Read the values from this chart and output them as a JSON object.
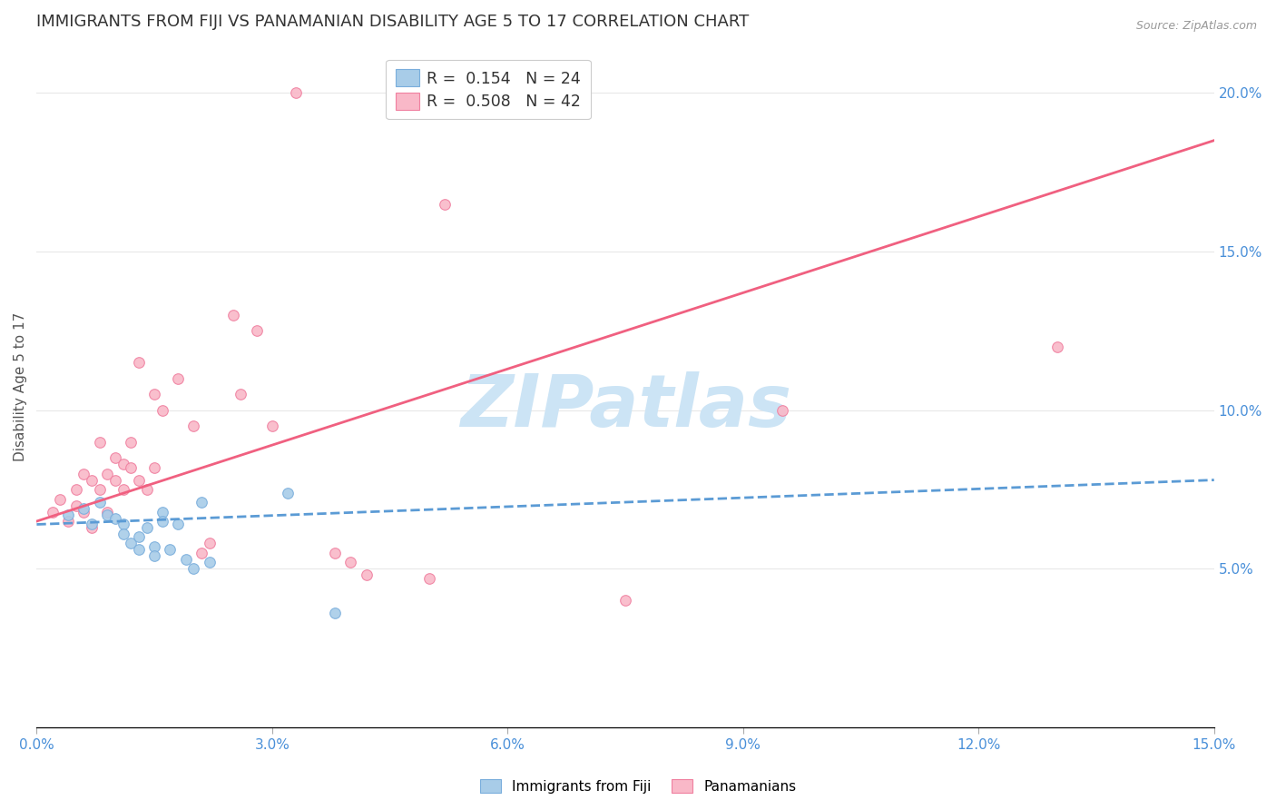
{
  "title": "IMMIGRANTS FROM FIJI VS PANAMANIAN DISABILITY AGE 5 TO 17 CORRELATION CHART",
  "source": "Source: ZipAtlas.com",
  "ylabel": "Disability Age 5 to 17",
  "xlim": [
    0.0,
    0.15
  ],
  "ylim": [
    0.0,
    0.215
  ],
  "xticks": [
    0.0,
    0.03,
    0.06,
    0.09,
    0.12,
    0.15
  ],
  "yticks_right": [
    0.05,
    0.1,
    0.15,
    0.2
  ],
  "fiji_color": "#a8cce8",
  "panama_color": "#f9b8c8",
  "fiji_edge_color": "#7aaedc",
  "panama_edge_color": "#f080a0",
  "fiji_line_color": "#5b9bd5",
  "panama_line_color": "#f06080",
  "fiji_line_style": "--",
  "panama_line_style": "-",
  "legend_label_fiji": "R =  0.154   N = 24",
  "legend_label_panama": "R =  0.508   N = 42",
  "bottom_legend_fiji": "Immigrants from Fiji",
  "bottom_legend_panama": "Panamanians",
  "background_color": "#ffffff",
  "grid_color": "#e8e8e8",
  "watermark_text": "ZIPatlas",
  "watermark_color": "#cce4f5",
  "title_fontsize": 13,
  "axis_label_fontsize": 11,
  "tick_fontsize": 11,
  "scatter_size": 70,
  "fiji_scatter": [
    [
      0.004,
      0.067
    ],
    [
      0.006,
      0.069
    ],
    [
      0.007,
      0.064
    ],
    [
      0.008,
      0.071
    ],
    [
      0.009,
      0.067
    ],
    [
      0.01,
      0.066
    ],
    [
      0.011,
      0.064
    ],
    [
      0.011,
      0.061
    ],
    [
      0.012,
      0.058
    ],
    [
      0.013,
      0.06
    ],
    [
      0.013,
      0.056
    ],
    [
      0.014,
      0.063
    ],
    [
      0.015,
      0.057
    ],
    [
      0.015,
      0.054
    ],
    [
      0.016,
      0.068
    ],
    [
      0.016,
      0.065
    ],
    [
      0.017,
      0.056
    ],
    [
      0.018,
      0.064
    ],
    [
      0.019,
      0.053
    ],
    [
      0.02,
      0.05
    ],
    [
      0.021,
      0.071
    ],
    [
      0.022,
      0.052
    ],
    [
      0.032,
      0.074
    ],
    [
      0.038,
      0.036
    ]
  ],
  "panama_scatter": [
    [
      0.002,
      0.068
    ],
    [
      0.003,
      0.072
    ],
    [
      0.004,
      0.065
    ],
    [
      0.005,
      0.07
    ],
    [
      0.005,
      0.075
    ],
    [
      0.006,
      0.068
    ],
    [
      0.006,
      0.08
    ],
    [
      0.007,
      0.078
    ],
    [
      0.007,
      0.063
    ],
    [
      0.008,
      0.075
    ],
    [
      0.008,
      0.09
    ],
    [
      0.009,
      0.068
    ],
    [
      0.009,
      0.08
    ],
    [
      0.01,
      0.085
    ],
    [
      0.01,
      0.078
    ],
    [
      0.011,
      0.083
    ],
    [
      0.011,
      0.075
    ],
    [
      0.012,
      0.082
    ],
    [
      0.012,
      0.09
    ],
    [
      0.013,
      0.115
    ],
    [
      0.013,
      0.078
    ],
    [
      0.014,
      0.075
    ],
    [
      0.015,
      0.082
    ],
    [
      0.015,
      0.105
    ],
    [
      0.016,
      0.1
    ],
    [
      0.018,
      0.11
    ],
    [
      0.02,
      0.095
    ],
    [
      0.021,
      0.055
    ],
    [
      0.022,
      0.058
    ],
    [
      0.025,
      0.13
    ],
    [
      0.026,
      0.105
    ],
    [
      0.028,
      0.125
    ],
    [
      0.03,
      0.095
    ],
    [
      0.033,
      0.2
    ],
    [
      0.038,
      0.055
    ],
    [
      0.04,
      0.052
    ],
    [
      0.042,
      0.048
    ],
    [
      0.05,
      0.047
    ],
    [
      0.052,
      0.165
    ],
    [
      0.075,
      0.04
    ],
    [
      0.095,
      0.1
    ],
    [
      0.13,
      0.12
    ]
  ],
  "fiji_line_x": [
    0.0,
    0.15
  ],
  "fiji_line_y": [
    0.064,
    0.078
  ],
  "panama_line_x": [
    0.0,
    0.15
  ],
  "panama_line_y": [
    0.065,
    0.185
  ]
}
